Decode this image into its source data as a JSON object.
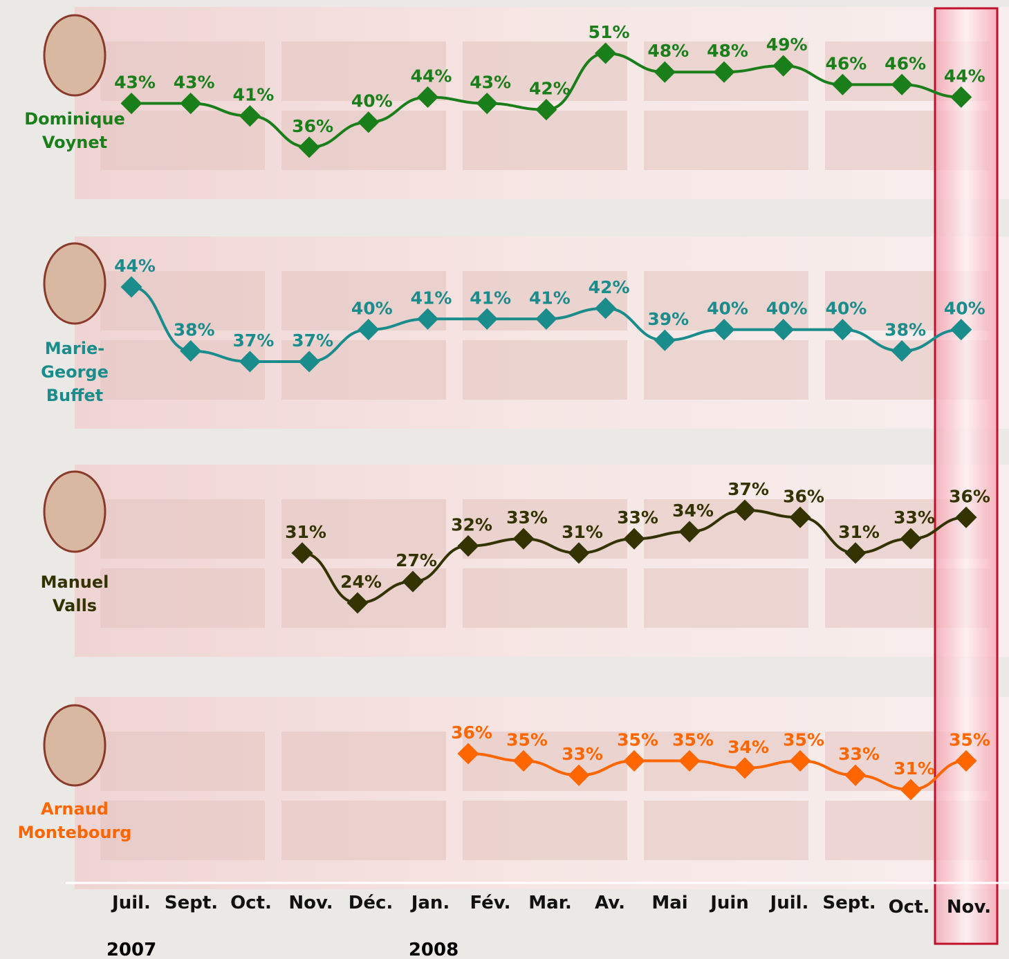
{
  "chart_data": {
    "type": "line",
    "categories": [
      "Juil.",
      "Sept.",
      "Oct.",
      "Nov.",
      "Déc.",
      "Jan.",
      "Fév.",
      "Mar.",
      "Av.",
      "Mai",
      "Juin",
      "Juil.",
      "Sept.",
      "Oct.",
      "Nov."
    ],
    "annotations": [
      "2007",
      "2008"
    ],
    "series": [
      {
        "name": "Dominique Voynet",
        "color": "#1a7f1a",
        "values": [
          43,
          43,
          41,
          36,
          40,
          44,
          43,
          42,
          51,
          48,
          48,
          49,
          46,
          46,
          44
        ],
        "value_labels": [
          "43%",
          "43%",
          "41%",
          "36%",
          "40%",
          "44%",
          "43%",
          "42%",
          "51%",
          "48%",
          "48%",
          "49%",
          "46%",
          "46%",
          "44%"
        ]
      },
      {
        "name": "Marie-George Buffet",
        "color": "#1a8c8c",
        "values": [
          44,
          38,
          37,
          37,
          40,
          41,
          41,
          41,
          42,
          39,
          40,
          40,
          40,
          38,
          40
        ],
        "value_labels": [
          "44%",
          "38%",
          "37%",
          "37%",
          "40%",
          "41%",
          "41%",
          "41%",
          "42%",
          "39%",
          "40%",
          "40%",
          "40%",
          "38%",
          "40%"
        ]
      },
      {
        "name": "Manuel Valls",
        "color": "#333300",
        "values": [
          null,
          null,
          31,
          24,
          27,
          32,
          33,
          31,
          33,
          34,
          37,
          36,
          31,
          33,
          36
        ],
        "value_labels": [
          null,
          null,
          "31%",
          "24%",
          "27%",
          "32%",
          "33%",
          "31%",
          "33%",
          "34%",
          "37%",
          "36%",
          "31%",
          "33%",
          "36%"
        ]
      },
      {
        "name": "Arnaud Montebourg",
        "color": "#ff6600",
        "values": [
          null,
          null,
          null,
          null,
          null,
          36,
          35,
          33,
          35,
          35,
          34,
          35,
          33,
          31,
          35
        ],
        "value_labels": [
          null,
          null,
          null,
          null,
          null,
          "36%",
          "35%",
          "33%",
          "35%",
          "35%",
          "34%",
          "35%",
          "33%",
          "31%",
          "35%"
        ]
      }
    ]
  }
}
